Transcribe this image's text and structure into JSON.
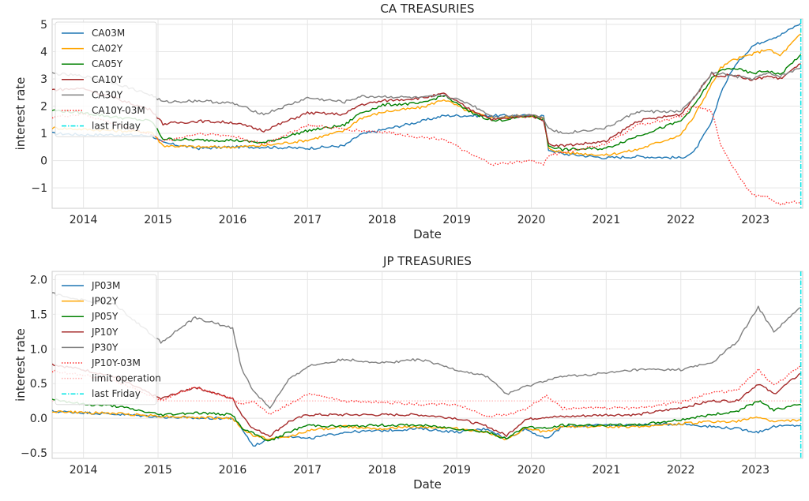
{
  "chart_data": [
    {
      "type": "line",
      "title": "CA TREASURIES",
      "xlabel": "Date",
      "ylabel": "interest rate",
      "xlim": [
        "2013-08-01",
        "2023-08-20"
      ],
      "ylim": [
        -1.75,
        5.2
      ],
      "xticks": [
        "2014",
        "2015",
        "2016",
        "2017",
        "2018",
        "2019",
        "2020",
        "2021",
        "2022",
        "2023"
      ],
      "yticks": [
        "−1",
        "0",
        "1",
        "2",
        "3",
        "4",
        "5"
      ],
      "grid": true,
      "legend_position": "upper-left",
      "vline": {
        "name": "last Friday",
        "date": "2023-08-11",
        "color": "#00e5e5"
      },
      "series": [
        {
          "name": "CA03M",
          "color": "#1f77b4",
          "style": "solid",
          "x": [
            "2013-08-01",
            "2014-01-01",
            "2014-06-01",
            "2014-12-01",
            "2015-01-25",
            "2015-07-20",
            "2016-01-01",
            "2016-06-01",
            "2017-01-01",
            "2017-07-01",
            "2017-09-15",
            "2018-01-15",
            "2018-07-15",
            "2018-10-30",
            "2019-03-01",
            "2019-07-01",
            "2020-01-01",
            "2020-03-01",
            "2020-03-25",
            "2020-06-01",
            "2021-01-01",
            "2021-06-01",
            "2022-01-01",
            "2022-03-05",
            "2022-06-01",
            "2022-07-15",
            "2022-09-15",
            "2022-12-15",
            "2023-03-01",
            "2023-05-01",
            "2023-08-11"
          ],
          "y": [
            1.0,
            0.95,
            0.95,
            0.92,
            0.65,
            0.45,
            0.5,
            0.5,
            0.45,
            0.55,
            0.95,
            1.15,
            1.45,
            1.65,
            1.65,
            1.65,
            1.65,
            1.65,
            0.4,
            0.25,
            0.1,
            0.15,
            0.1,
            0.3,
            1.4,
            2.5,
            3.4,
            4.2,
            4.45,
            4.6,
            5.05
          ]
        },
        {
          "name": "CA02Y",
          "color": "#ffa500",
          "style": "solid",
          "x": [
            "2013-08-01",
            "2014-01-01",
            "2014-06-01",
            "2014-12-01",
            "2015-01-25",
            "2015-07-20",
            "2016-01-01",
            "2016-06-01",
            "2017-01-01",
            "2017-07-01",
            "2017-09-15",
            "2018-01-15",
            "2018-07-15",
            "2018-10-30",
            "2019-03-01",
            "2019-07-01",
            "2020-01-01",
            "2020-03-01",
            "2020-03-25",
            "2020-06-01",
            "2021-01-01",
            "2021-06-01",
            "2022-01-01",
            "2022-03-05",
            "2022-06-01",
            "2022-07-15",
            "2022-09-15",
            "2022-12-15",
            "2023-03-01",
            "2023-05-01",
            "2023-08-11"
          ],
          "y": [
            1.2,
            1.15,
            1.1,
            1.05,
            0.55,
            0.5,
            0.5,
            0.55,
            0.75,
            1.1,
            1.55,
            1.8,
            1.95,
            2.25,
            1.8,
            1.55,
            1.65,
            1.55,
            0.45,
            0.3,
            0.2,
            0.4,
            0.95,
            1.6,
            2.8,
            3.4,
            3.7,
            3.9,
            4.1,
            3.85,
            4.65
          ]
        },
        {
          "name": "CA05Y",
          "color": "#008000",
          "style": "solid",
          "x": [
            "2013-08-01",
            "2014-01-01",
            "2014-06-01",
            "2014-12-01",
            "2015-01-25",
            "2015-07-20",
            "2016-01-01",
            "2016-06-01",
            "2017-01-01",
            "2017-07-01",
            "2017-09-15",
            "2018-01-15",
            "2018-07-15",
            "2018-10-30",
            "2019-03-01",
            "2019-07-01",
            "2020-01-01",
            "2020-03-01",
            "2020-03-25",
            "2020-06-01",
            "2021-01-01",
            "2021-06-01",
            "2022-01-01",
            "2022-03-05",
            "2022-06-01",
            "2022-07-15",
            "2022-09-15",
            "2022-12-15",
            "2023-03-01",
            "2023-05-01",
            "2023-08-11"
          ],
          "y": [
            1.85,
            1.75,
            1.6,
            1.45,
            0.8,
            0.75,
            0.75,
            0.65,
            1.1,
            1.3,
            1.75,
            2.05,
            2.1,
            2.4,
            1.8,
            1.45,
            1.65,
            1.5,
            0.55,
            0.4,
            0.45,
            0.9,
            1.45,
            2.0,
            3.0,
            3.3,
            3.4,
            3.2,
            3.3,
            3.15,
            3.9
          ]
        },
        {
          "name": "CA10Y",
          "color": "#a52a2a",
          "style": "solid",
          "x": [
            "2013-08-01",
            "2014-01-01",
            "2014-06-01",
            "2014-12-01",
            "2015-01-25",
            "2015-07-20",
            "2016-01-01",
            "2016-06-01",
            "2017-01-01",
            "2017-07-01",
            "2017-09-15",
            "2018-01-15",
            "2018-07-15",
            "2018-10-30",
            "2019-03-01",
            "2019-07-01",
            "2020-01-01",
            "2020-03-01",
            "2020-03-25",
            "2020-06-01",
            "2021-01-01",
            "2021-06-01",
            "2022-01-01",
            "2022-03-05",
            "2022-06-01",
            "2022-07-15",
            "2022-09-15",
            "2022-12-15",
            "2023-03-01",
            "2023-05-01",
            "2023-08-11"
          ],
          "y": [
            2.6,
            2.65,
            2.3,
            1.85,
            1.35,
            1.45,
            1.4,
            1.1,
            1.75,
            1.7,
            2.05,
            2.2,
            2.3,
            2.45,
            1.9,
            1.5,
            1.65,
            1.5,
            0.6,
            0.55,
            0.7,
            1.45,
            1.7,
            2.3,
            3.2,
            3.1,
            3.15,
            2.95,
            3.1,
            3.0,
            3.55
          ]
        },
        {
          "name": "CA30Y",
          "color": "#808080",
          "style": "solid",
          "x": [
            "2013-08-01",
            "2014-01-01",
            "2014-06-01",
            "2014-12-01",
            "2015-01-25",
            "2015-07-20",
            "2016-01-01",
            "2016-06-01",
            "2017-01-01",
            "2017-07-01",
            "2017-09-15",
            "2018-01-15",
            "2018-07-15",
            "2018-10-30",
            "2019-03-01",
            "2019-07-01",
            "2020-01-01",
            "2020-03-01",
            "2020-03-25",
            "2020-06-01",
            "2021-01-01",
            "2021-06-01",
            "2022-01-01",
            "2022-03-05",
            "2022-06-01",
            "2022-07-15",
            "2022-09-15",
            "2022-12-15",
            "2023-03-01",
            "2023-05-01",
            "2023-08-11"
          ],
          "y": [
            3.2,
            3.1,
            2.85,
            2.4,
            2.15,
            2.2,
            2.1,
            1.7,
            2.3,
            2.15,
            2.35,
            2.35,
            2.3,
            2.4,
            2.1,
            1.6,
            1.7,
            1.55,
            1.2,
            1.0,
            1.2,
            1.8,
            1.8,
            2.3,
            3.2,
            3.2,
            3.1,
            3.0,
            3.2,
            3.1,
            3.4
          ]
        },
        {
          "name": "CA10Y-03M",
          "color": "#ff3333",
          "style": "dotted",
          "x": [
            "2013-08-01",
            "2014-01-01",
            "2014-06-01",
            "2014-12-01",
            "2015-01-25",
            "2015-07-20",
            "2016-01-01",
            "2016-06-01",
            "2017-01-01",
            "2017-07-01",
            "2017-09-15",
            "2018-01-15",
            "2018-07-15",
            "2018-10-30",
            "2019-03-01",
            "2019-07-01",
            "2020-01-01",
            "2020-03-01",
            "2020-03-25",
            "2020-06-01",
            "2021-01-01",
            "2021-06-01",
            "2022-01-01",
            "2022-03-05",
            "2022-06-01",
            "2022-07-15",
            "2022-09-15",
            "2022-12-15",
            "2023-03-01",
            "2023-05-01",
            "2023-08-11"
          ],
          "y": [
            1.6,
            1.7,
            1.35,
            0.95,
            0.7,
            1.0,
            0.9,
            0.6,
            1.3,
            1.15,
            1.1,
            1.05,
            0.85,
            0.8,
            0.25,
            -0.15,
            0.0,
            -0.15,
            0.2,
            0.3,
            0.6,
            1.3,
            1.6,
            2.0,
            1.8,
            0.6,
            -0.25,
            -1.25,
            -1.35,
            -1.6,
            -1.5
          ]
        },
        {
          "name": "last Friday",
          "color": "#00e5e5",
          "style": "dashdot",
          "x": [],
          "y": []
        }
      ]
    },
    {
      "type": "line",
      "title": "JP TREASURIES",
      "xlabel": "Date",
      "ylabel": "interest rate",
      "xlim": [
        "2013-08-01",
        "2023-08-20"
      ],
      "ylim": [
        -0.58,
        2.12
      ],
      "xticks": [
        "2014",
        "2015",
        "2016",
        "2017",
        "2018",
        "2019",
        "2020",
        "2021",
        "2022",
        "2023"
      ],
      "yticks": [
        "−0.5",
        "0.0",
        "0.5",
        "1.0",
        "1.5",
        "2.0"
      ],
      "grid": true,
      "legend_position": "upper-left",
      "vline": {
        "name": "last Friday",
        "date": "2023-08-11",
        "color": "#00e5e5"
      },
      "hline": {
        "name": "limit operation",
        "value": 0.25,
        "color": "#ffb3b3"
      },
      "series": [
        {
          "name": "JP03M",
          "color": "#1f77b4",
          "style": "solid",
          "x": [
            "2013-08-01",
            "2014-01-01",
            "2014-06-01",
            "2015-01-15",
            "2015-07-01",
            "2016-01-01",
            "2016-02-15",
            "2016-04-10",
            "2016-07-01",
            "2016-10-01",
            "2017-01-01",
            "2017-07-01",
            "2018-01-01",
            "2018-07-01",
            "2019-01-01",
            "2019-06-01",
            "2019-09-01",
            "2019-12-01",
            "2020-03-15",
            "2020-06-01",
            "2021-01-01",
            "2021-06-01",
            "2022-01-01",
            "2022-06-01",
            "2022-10-01",
            "2023-01-15",
            "2023-04-01",
            "2023-08-11"
          ],
          "y": [
            0.1,
            0.08,
            0.06,
            0.02,
            0.0,
            0.0,
            -0.15,
            -0.4,
            -0.3,
            -0.25,
            -0.3,
            -0.2,
            -0.18,
            -0.15,
            -0.2,
            -0.15,
            -0.3,
            -0.15,
            -0.3,
            -0.12,
            -0.1,
            -0.1,
            -0.08,
            -0.12,
            -0.15,
            -0.2,
            -0.12,
            -0.1
          ]
        },
        {
          "name": "JP02Y",
          "color": "#ffa500",
          "style": "solid",
          "x": [
            "2013-08-01",
            "2014-01-01",
            "2014-06-01",
            "2015-01-15",
            "2015-07-01",
            "2016-01-01",
            "2016-02-15",
            "2016-04-10",
            "2016-07-01",
            "2016-10-01",
            "2017-01-01",
            "2017-07-01",
            "2018-01-01",
            "2018-07-01",
            "2019-01-01",
            "2019-06-01",
            "2019-09-01",
            "2019-12-01",
            "2020-03-15",
            "2020-06-01",
            "2021-01-01",
            "2021-06-01",
            "2022-01-01",
            "2022-06-01",
            "2022-10-01",
            "2023-01-15",
            "2023-04-01",
            "2023-08-11"
          ],
          "y": [
            0.1,
            0.08,
            0.07,
            0.03,
            0.01,
            0.0,
            -0.15,
            -0.25,
            -0.3,
            -0.27,
            -0.18,
            -0.12,
            -0.15,
            -0.12,
            -0.15,
            -0.2,
            -0.32,
            -0.15,
            -0.2,
            -0.12,
            -0.12,
            -0.12,
            -0.08,
            -0.05,
            -0.05,
            0.02,
            -0.05,
            -0.02
          ]
        },
        {
          "name": "JP05Y",
          "color": "#008000",
          "style": "solid",
          "x": [
            "2013-08-01",
            "2014-01-01",
            "2014-06-01",
            "2015-01-15",
            "2015-07-01",
            "2016-01-01",
            "2016-02-15",
            "2016-04-10",
            "2016-07-01",
            "2016-10-01",
            "2017-01-01",
            "2017-07-01",
            "2018-01-01",
            "2018-07-01",
            "2019-01-01",
            "2019-06-01",
            "2019-09-01",
            "2019-12-01",
            "2020-03-15",
            "2020-06-01",
            "2021-01-01",
            "2021-06-01",
            "2022-01-01",
            "2022-06-01",
            "2022-10-01",
            "2023-01-15",
            "2023-04-01",
            "2023-08-11"
          ],
          "y": [
            0.28,
            0.2,
            0.18,
            0.05,
            0.08,
            0.05,
            -0.15,
            -0.22,
            -0.33,
            -0.2,
            -0.1,
            -0.12,
            -0.1,
            -0.1,
            -0.15,
            -0.2,
            -0.3,
            -0.12,
            -0.15,
            -0.1,
            -0.1,
            -0.1,
            -0.02,
            0.05,
            0.1,
            0.25,
            0.12,
            0.2
          ]
        },
        {
          "name": "JP10Y",
          "color": "#a52a2a",
          "style": "solid",
          "x": [
            "2013-08-01",
            "2014-01-01",
            "2014-06-01",
            "2015-01-15",
            "2015-07-01",
            "2016-01-01",
            "2016-02-15",
            "2016-04-10",
            "2016-07-01",
            "2016-10-01",
            "2017-01-01",
            "2017-07-01",
            "2018-01-01",
            "2018-07-01",
            "2019-01-01",
            "2019-06-01",
            "2019-09-01",
            "2019-12-01",
            "2020-03-15",
            "2020-06-01",
            "2021-01-01",
            "2021-06-01",
            "2022-01-01",
            "2022-06-01",
            "2022-10-01",
            "2023-01-15",
            "2023-04-01",
            "2023-08-11"
          ],
          "y": [
            0.78,
            0.7,
            0.6,
            0.28,
            0.45,
            0.28,
            0.05,
            -0.15,
            -0.25,
            -0.05,
            0.05,
            0.05,
            0.05,
            0.05,
            0.0,
            -0.12,
            -0.25,
            -0.02,
            0.02,
            0.02,
            0.05,
            0.05,
            0.15,
            0.25,
            0.25,
            0.5,
            0.35,
            0.65
          ]
        },
        {
          "name": "JP30Y",
          "color": "#808080",
          "style": "solid",
          "x": [
            "2013-08-01",
            "2014-01-01",
            "2014-06-01",
            "2015-01-15",
            "2015-07-01",
            "2016-01-01",
            "2016-02-15",
            "2016-04-10",
            "2016-07-01",
            "2016-10-01",
            "2017-01-01",
            "2017-07-01",
            "2018-01-01",
            "2018-07-01",
            "2019-01-01",
            "2019-06-01",
            "2019-09-01",
            "2019-12-01",
            "2020-03-15",
            "2020-06-01",
            "2021-01-01",
            "2021-06-01",
            "2022-01-01",
            "2022-06-01",
            "2022-10-01",
            "2023-01-15",
            "2023-04-01",
            "2023-08-11"
          ],
          "y": [
            1.8,
            1.7,
            1.65,
            1.1,
            1.45,
            1.3,
            0.7,
            0.4,
            0.15,
            0.55,
            0.75,
            0.85,
            0.8,
            0.85,
            0.7,
            0.6,
            0.35,
            0.45,
            0.55,
            0.6,
            0.65,
            0.7,
            0.7,
            0.8,
            1.1,
            1.6,
            1.25,
            1.6
          ]
        },
        {
          "name": "JP10Y-03M",
          "color": "#ff3333",
          "style": "dotted",
          "x": [
            "2013-08-01",
            "2014-01-01",
            "2014-06-01",
            "2015-01-15",
            "2015-07-01",
            "2016-01-01",
            "2016-02-15",
            "2016-04-10",
            "2016-07-01",
            "2016-10-01",
            "2017-01-01",
            "2017-07-01",
            "2018-01-01",
            "2018-07-01",
            "2019-01-01",
            "2019-06-01",
            "2019-09-01",
            "2019-12-01",
            "2020-03-15",
            "2020-06-01",
            "2021-01-01",
            "2021-06-01",
            "2022-01-01",
            "2022-06-01",
            "2022-10-01",
            "2023-01-15",
            "2023-04-01",
            "2023-08-11"
          ],
          "y": [
            0.68,
            0.62,
            0.54,
            0.26,
            0.45,
            0.28,
            0.2,
            0.25,
            0.05,
            0.2,
            0.35,
            0.25,
            0.23,
            0.2,
            0.2,
            0.03,
            0.05,
            0.13,
            0.32,
            0.14,
            0.15,
            0.15,
            0.23,
            0.37,
            0.4,
            0.7,
            0.47,
            0.75
          ]
        },
        {
          "name": "limit operation",
          "color": "#ffb3b3",
          "style": "dotted",
          "x": [],
          "y": []
        },
        {
          "name": "last Friday",
          "color": "#00e5e5",
          "style": "dashdot",
          "x": [],
          "y": []
        }
      ]
    }
  ]
}
